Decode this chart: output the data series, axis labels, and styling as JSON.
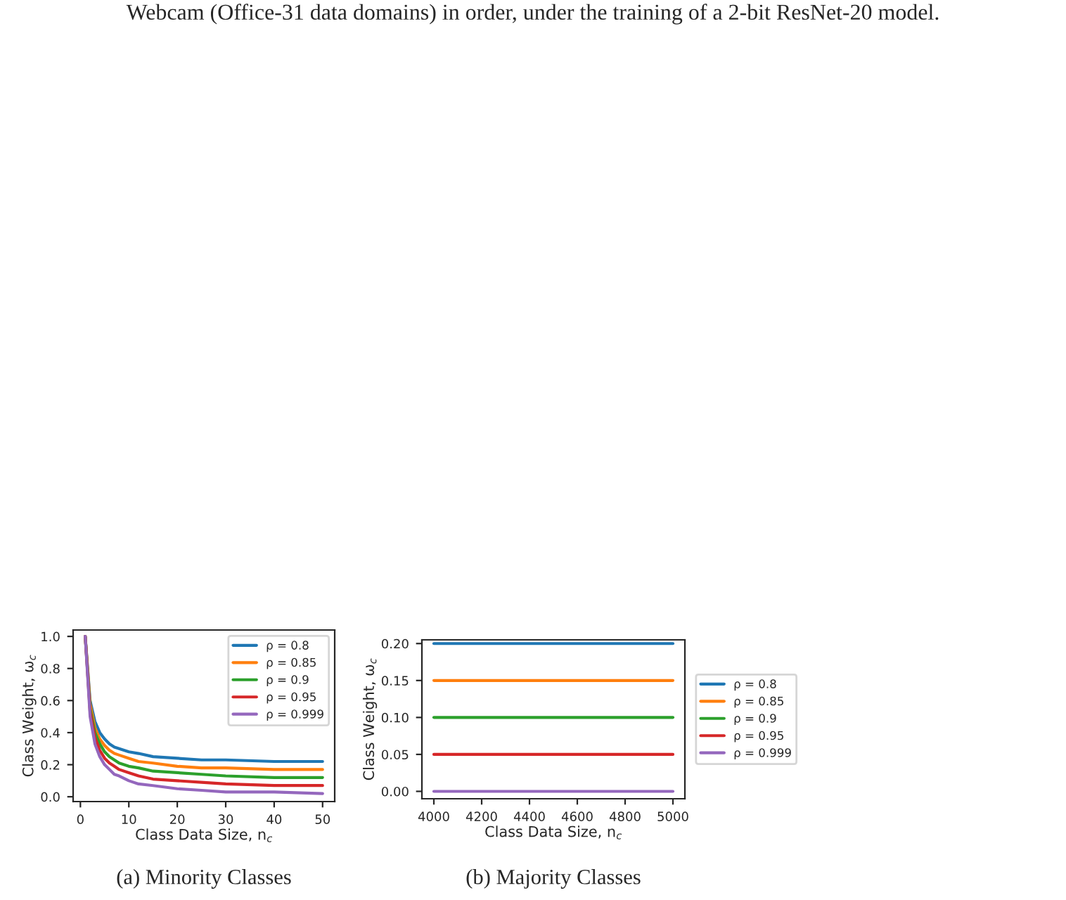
{
  "chart_data": [
    {
      "type": "line",
      "xlabel": "Class Data Size, n$_{c}$",
      "ylabel": "Class Weight, ω$_{c}$",
      "annotations": [
        "Webcam (Office-31 data domains) in order, under the training of a 2-bit ResNet-20 model.",
        "(a) Minority Classes"
      ],
      "x": [
        1,
        2,
        3,
        4,
        5,
        6,
        7,
        8,
        10,
        12,
        15,
        20,
        25,
        30,
        40,
        50
      ],
      "series": [
        {
          "name": "ρ = 0.8",
          "color": "#1f77b4",
          "values": [
            1.0,
            0.6,
            0.47,
            0.4,
            0.36,
            0.33,
            0.31,
            0.3,
            0.28,
            0.27,
            0.25,
            0.24,
            0.23,
            0.23,
            0.22,
            0.22
          ]
        },
        {
          "name": "ρ = 0.85",
          "color": "#ff7f0e",
          "values": [
            1.0,
            0.58,
            0.43,
            0.36,
            0.32,
            0.29,
            0.27,
            0.26,
            0.24,
            0.22,
            0.21,
            0.19,
            0.18,
            0.18,
            0.17,
            0.17
          ]
        },
        {
          "name": "ρ = 0.9",
          "color": "#2ca02c",
          "values": [
            1.0,
            0.55,
            0.4,
            0.33,
            0.28,
            0.25,
            0.23,
            0.21,
            0.19,
            0.18,
            0.16,
            0.15,
            0.14,
            0.13,
            0.12,
            0.12
          ]
        },
        {
          "name": "ρ = 0.95",
          "color": "#d62728",
          "values": [
            1.0,
            0.53,
            0.37,
            0.29,
            0.24,
            0.21,
            0.19,
            0.17,
            0.15,
            0.13,
            0.11,
            0.1,
            0.09,
            0.08,
            0.07,
            0.07
          ]
        },
        {
          "name": "ρ = 0.999",
          "color": "#9467bd",
          "values": [
            1.0,
            0.5,
            0.33,
            0.25,
            0.2,
            0.17,
            0.14,
            0.13,
            0.1,
            0.08,
            0.07,
            0.05,
            0.04,
            0.03,
            0.03,
            0.02
          ]
        }
      ],
      "xlim": [
        -1.5,
        52.5
      ],
      "ylim": [
        -0.03,
        1.04
      ],
      "xticks": [
        0,
        10,
        20,
        30,
        40,
        50
      ],
      "yticks": [
        {
          "value": 0,
          "label": "0.0"
        },
        0.2,
        0.4,
        0.6,
        0.8,
        {
          "value": 1,
          "label": "1.0"
        }
      ],
      "grid": false,
      "legend": "top right",
      "marker": "none",
      "line_style": "solid"
    },
    {
      "type": "line",
      "xlabel": "Class Data Size, n$_{c}$",
      "ylabel": "Class Weight, ω$_{c}$",
      "annotations": [
        "(b) Majority Classes"
      ],
      "x": [
        4000,
        5000
      ],
      "series": [
        {
          "name": "ρ = 0.8",
          "color": "#1f77b4",
          "values": [
            0.2,
            0.2
          ]
        },
        {
          "name": "ρ = 0.85",
          "color": "#ff7f0e",
          "values": [
            0.15,
            0.15
          ]
        },
        {
          "name": "ρ = 0.9",
          "color": "#2ca02c",
          "values": [
            0.1,
            0.1
          ]
        },
        {
          "name": "ρ = 0.95",
          "color": "#d62728",
          "values": [
            0.05,
            0.05
          ]
        },
        {
          "name": "ρ = 0.999",
          "color": "#9467bd",
          "values": [
            0.0,
            0.0
          ]
        }
      ],
      "xlim": [
        3950,
        5050
      ],
      "ylim": [
        -0.01,
        0.205
      ],
      "xticks": [
        4000,
        4200,
        4400,
        4600,
        4800,
        5000
      ],
      "yticks": [
        {
          "value": 0,
          "label": "0.00"
        },
        {
          "value": 0.05,
          "label": "0.05"
        },
        {
          "value": 0.1,
          "label": "0.10"
        },
        {
          "value": 0.15,
          "label": "0.15"
        },
        {
          "value": 0.2,
          "label": "0.20"
        }
      ],
      "grid": false,
      "legend": "right",
      "marker": "none",
      "line_style": "solid"
    }
  ]
}
